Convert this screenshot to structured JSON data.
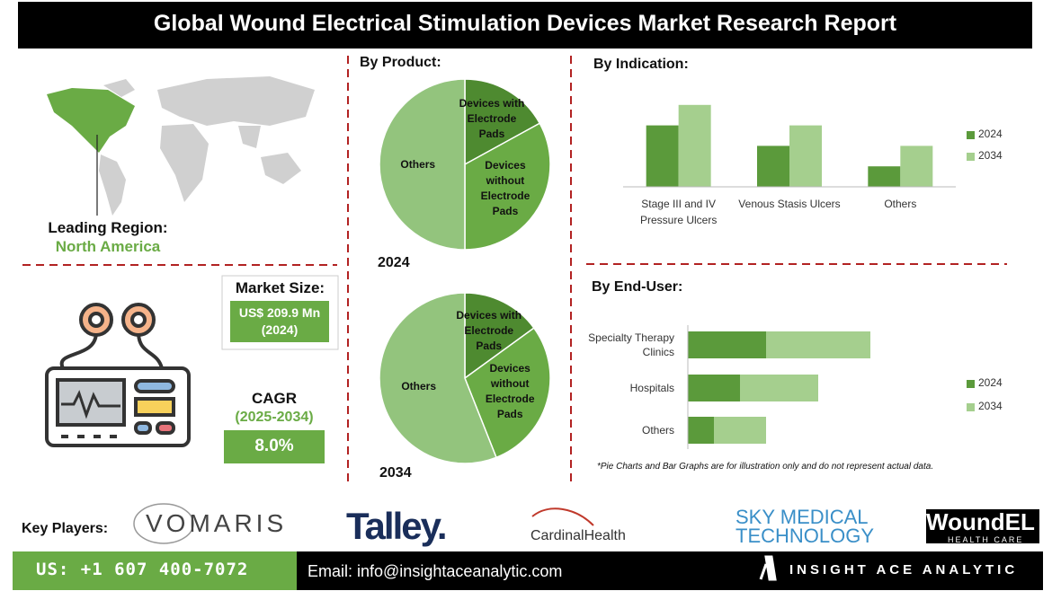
{
  "header": {
    "title": "Global Wound Electrical Stimulation Devices Market Research Report"
  },
  "region": {
    "label": "Leading Region:",
    "value": "North America"
  },
  "market_size": {
    "label": "Market Size:",
    "value": "US$ 209.9 Mn (2024)"
  },
  "cagr": {
    "label": "CAGR",
    "period": "(2025-2034)",
    "value": "8.0%"
  },
  "chart_data": [
    {
      "type": "pie",
      "title": "By Product:",
      "caption": "2024",
      "categories": [
        "Devices with Electrode Pads",
        "Devices without Electrode Pads",
        "Others"
      ],
      "values": [
        17,
        33,
        50
      ],
      "colors": [
        "#4e8a30",
        "#6aab45",
        "#93c47d"
      ]
    },
    {
      "type": "pie",
      "caption": "2034",
      "categories": [
        "Devices with Electrode Pads",
        "Devices without Electrode Pads",
        "Others"
      ],
      "values": [
        15,
        29,
        56
      ],
      "colors": [
        "#4e8a30",
        "#6aab45",
        "#93c47d"
      ]
    },
    {
      "type": "bar",
      "title": "By Indication:",
      "categories": [
        "Stage III and IV Pressure Ulcers",
        "Venous Stasis Ulcers",
        "Others"
      ],
      "series": [
        {
          "name": "2024",
          "color": "#5b9a3b",
          "values": [
            3,
            2,
            1
          ]
        },
        {
          "name": "2034",
          "color": "#a5cf8e",
          "values": [
            4,
            3,
            2
          ]
        }
      ],
      "ylim": [
        0,
        5
      ],
      "legend": "right"
    },
    {
      "type": "hbar",
      "title": "By End-User:",
      "stacked": true,
      "categories": [
        "Specialty Therapy Clinics",
        "Hospitals",
        "Others"
      ],
      "series": [
        {
          "name": "2024",
          "color": "#5b9a3b",
          "values": [
            3,
            2,
            1
          ]
        },
        {
          "name": "2034",
          "color": "#a5cf8e",
          "values": [
            4,
            3,
            2
          ]
        }
      ],
      "xlim": [
        0,
        8
      ],
      "legend": "right"
    }
  ],
  "note": "*Pie Charts and Bar Graphs are for illustration only and do not represent actual data.",
  "key_players": {
    "label": "Key Players:",
    "names": [
      "VOMARIS",
      "Talley.",
      "CardinalHealth",
      "SKY MEDICAL TECHNOLOGY",
      "WoundEL"
    ],
    "tagline": "HEALTH CARE"
  },
  "footer": {
    "phone": "US: +1 607 400-7072",
    "email": "Email: info@insightaceanalytic.com",
    "brand": "INSIGHT ACE ANALYTIC"
  }
}
